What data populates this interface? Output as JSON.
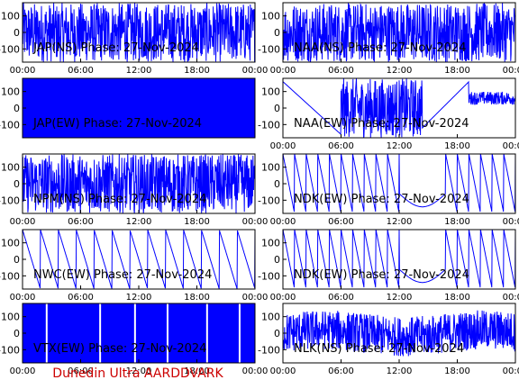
{
  "footer": {
    "text": "Dunedin Ultra AARDDVARK",
    "color": "#cc0000"
  },
  "colors": {
    "trace": "#0000ff",
    "axes": "#000000",
    "label": "#000000"
  },
  "chart_data": [
    {
      "type": "line",
      "label": "JAP(NS) Phase: 27-Nov-2024",
      "y_ticks": [
        "100",
        "0",
        "-100"
      ],
      "x_ticks": [
        "00:00",
        "06:00",
        "12:00",
        "18:00",
        "00:00"
      ],
      "ylim": [
        -180,
        180
      ],
      "pattern": "noise"
    },
    {
      "type": "line",
      "label": "NAA(NS) Phase: 27-Nov-2024",
      "y_ticks": [
        "100",
        "0",
        "-100"
      ],
      "x_ticks": [
        "00:00",
        "06:00",
        "12:00",
        "18:00",
        "00:00"
      ],
      "ylim": [
        -180,
        180
      ],
      "pattern": "noise"
    },
    {
      "type": "line",
      "label": "JAP(EW) Phase: 27-Nov-2024",
      "y_ticks": [
        "100",
        "0",
        "-100"
      ],
      "x_ticks": [],
      "ylim": [
        -180,
        180
      ],
      "pattern": "solid"
    },
    {
      "type": "line",
      "label": "NAA(EW) Phase: 27-Nov-2024",
      "y_ticks": [
        "100",
        "0",
        "-100"
      ],
      "x_ticks": [
        "00:00",
        "06:00",
        "12:00",
        "18:00",
        "00:00"
      ],
      "ylim": [
        -180,
        180
      ],
      "pattern": "naa_ew"
    },
    {
      "type": "line",
      "label": "NPM(NS) Phase: 27-Nov-2024",
      "y_ticks": [
        "100",
        "0",
        "-100"
      ],
      "x_ticks": [
        "00:00",
        "06:00",
        "12:00",
        "18:00",
        "00:00"
      ],
      "ylim": [
        -180,
        180
      ],
      "pattern": "noise"
    },
    {
      "type": "line",
      "label": "NDK(EW) Phase: 27-Nov-2024",
      "y_ticks": [
        "100",
        "0",
        "-100"
      ],
      "x_ticks": [
        "00:00",
        "06:00",
        "12:00",
        "18:00",
        "00:00"
      ],
      "ylim": [
        -180,
        180
      ],
      "pattern": "sawtooth_dip",
      "cycles": 20
    },
    {
      "type": "line",
      "label": "NWC(EW) Phase: 27-Nov-2024",
      "y_ticks": [
        "100",
        "0",
        "-100"
      ],
      "x_ticks": [
        "00:00",
        "06:00",
        "12:00",
        "18:00",
        "00:00"
      ],
      "ylim": [
        -180,
        180
      ],
      "pattern": "sawtooth_slow",
      "cycles": 13
    },
    {
      "type": "line",
      "label": "NDK(EW) Phase: 27-Nov-2024",
      "y_ticks": [
        "100",
        "0",
        "-100"
      ],
      "x_ticks": [
        "00:00",
        "06:00",
        "12:00",
        "18:00",
        "00:00"
      ],
      "ylim": [
        -180,
        180
      ],
      "pattern": "sawtooth_dip",
      "cycles": 20
    },
    {
      "type": "line",
      "label": "VTX(EW) Phase: 27-Nov-2024",
      "y_ticks": [
        "100",
        "0",
        "-100"
      ],
      "x_ticks": [
        "00:00",
        "06:00",
        "12:00",
        "18:00",
        "00:00"
      ],
      "ylim": [
        -180,
        180
      ],
      "pattern": "solid_gaps"
    },
    {
      "type": "line",
      "label": "NLK(NS) Phase: 27-Nov-2024",
      "y_ticks": [
        "100",
        "0",
        "-100"
      ],
      "x_ticks": [
        "00:00",
        "06:00",
        "12:00",
        "18:00",
        "00:00"
      ],
      "ylim": [
        -180,
        180
      ],
      "pattern": "noise_mid"
    }
  ]
}
